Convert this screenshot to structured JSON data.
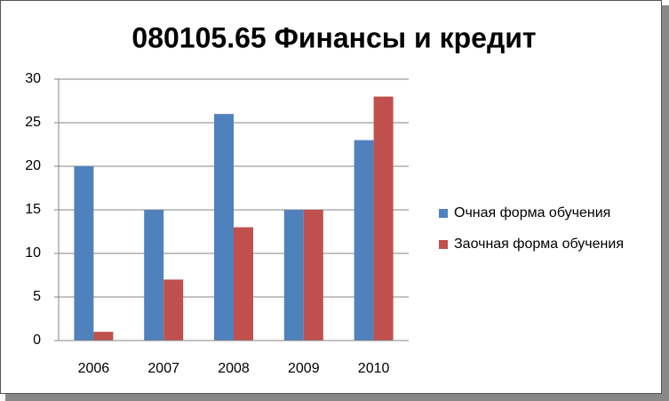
{
  "chart_data": {
    "type": "bar",
    "title": "080105.65 Финансы и кредит",
    "categories": [
      "2006",
      "2007",
      "2008",
      "2009",
      "2010"
    ],
    "series": [
      {
        "name": "Очная форма обучения",
        "color": "#4f81bd",
        "values": [
          20,
          15,
          26,
          15,
          23
        ]
      },
      {
        "name": "Заочная форма обучения",
        "color": "#c0504d",
        "values": [
          1,
          7,
          13,
          15,
          28
        ]
      }
    ],
    "ylim": [
      0,
      30
    ],
    "yticks": [
      0,
      5,
      10,
      15,
      20,
      25,
      30
    ],
    "grid": true,
    "legend": "right"
  }
}
